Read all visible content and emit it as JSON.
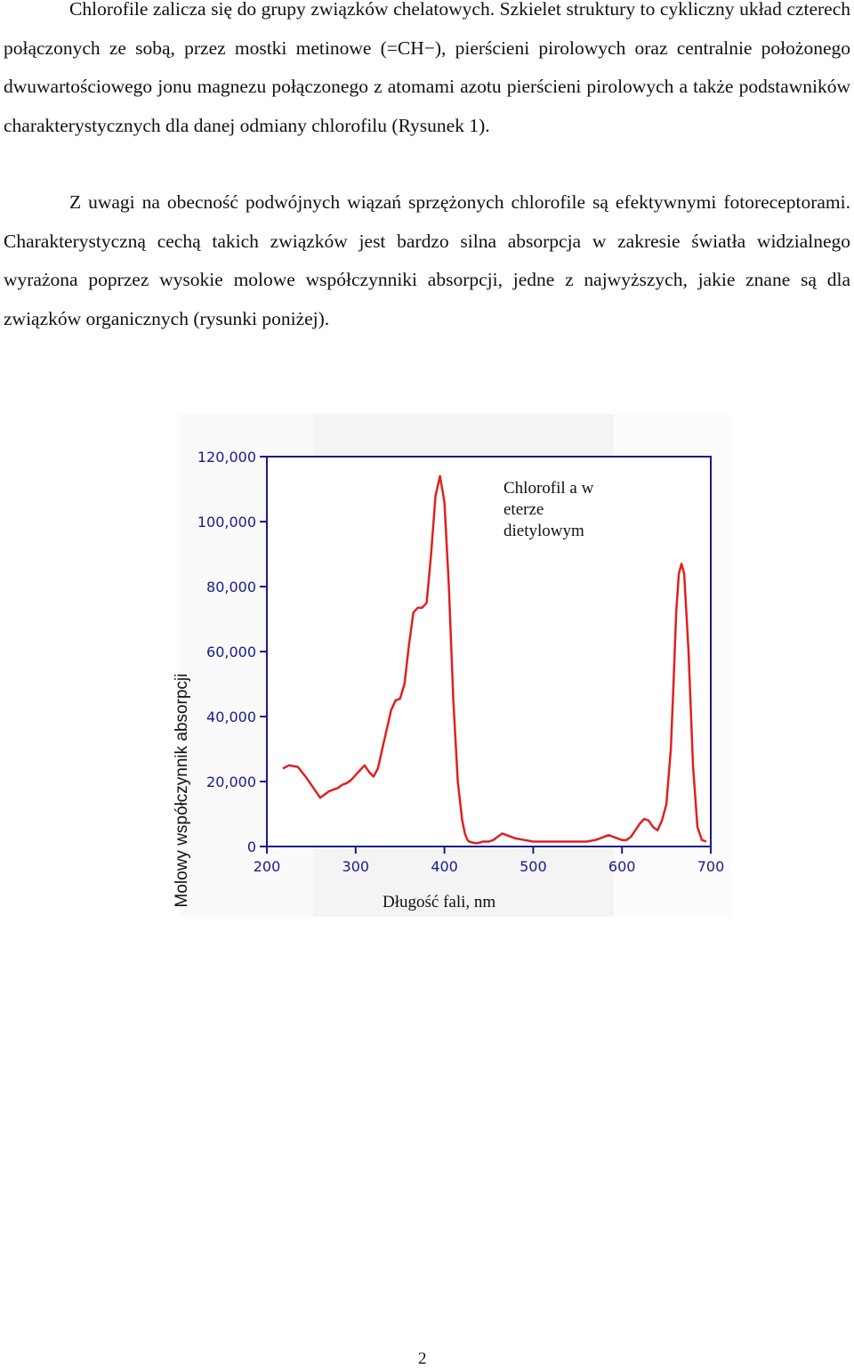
{
  "paragraphs": [
    "Chlorofile zalicza się do grupy związków chelatowych. Szkielet struktury to cykliczny układ czterech połączonych ze sobą, przez mostki metinowe (=CH−), pierścieni pirolowych oraz centralnie położonego dwuwartościowego jonu magnezu połączonego z atomami azotu pierścieni pirolowych a także podstawników charakterystycznych dla danej odmiany chlorofilu (Rysunek 1).",
    "Z uwagi na obecność podwójnych wiązań sprzężonych chlorofile są efektywnymi fotoreceptorami. Charakterystyczną cechą takich związków jest bardzo silna absorpcja w zakresie światła widzialnego wyrażona poprzez wysokie molowe współczynniki absorpcji, jedne z najwyższych, jakie znane są dla związków organicznych  (rysunki poniżej)."
  ],
  "figure": {
    "annotation": "Chlorofil a w eterze dietylowym",
    "ylabel": "Molowy  współczynnik absorpcji",
    "xlabel": "Długość fali, nm"
  },
  "chart_data": {
    "type": "line",
    "xlim": [
      200,
      700
    ],
    "ylim": [
      0,
      120000
    ],
    "xticks": [
      200,
      300,
      400,
      500,
      600,
      700
    ],
    "yticks": [
      0,
      20000,
      40000,
      60000,
      80000,
      100000,
      120000
    ],
    "xtick_labels": [
      "200",
      "300",
      "400",
      "500",
      "600",
      "700"
    ],
    "ytick_labels": [
      "0",
      "20,000",
      "40,000",
      "60,000",
      "80,000",
      "100,000",
      "120,000"
    ],
    "series": [
      {
        "color": "#e02020",
        "x": [
          218,
          225,
          235,
          245,
          255,
          260,
          265,
          270,
          275,
          280,
          285,
          290,
          295,
          300,
          305,
          310,
          315,
          320,
          325,
          330,
          335,
          340,
          345,
          350,
          355,
          360,
          365,
          370,
          375,
          380,
          385,
          390,
          395,
          400,
          405,
          410,
          415,
          420,
          423,
          426,
          428,
          432,
          436,
          440,
          443,
          446,
          450,
          455,
          460,
          465,
          470,
          480,
          490,
          500,
          510,
          520,
          530,
          535,
          540,
          545,
          550,
          560,
          570,
          575,
          580,
          585,
          590,
          595,
          600,
          605,
          610,
          615,
          620,
          625,
          630,
          635,
          640,
          645,
          650,
          655,
          658,
          661,
          664,
          667,
          670,
          675,
          680,
          685,
          690,
          695
        ],
        "y": [
          24000,
          25000,
          24500,
          21000,
          17000,
          15000,
          16000,
          17000,
          17500,
          18000,
          19000,
          19500,
          20500,
          22000,
          23500,
          25000,
          23000,
          21500,
          24000,
          30000,
          36000,
          42000,
          45000,
          45500,
          50000,
          62000,
          72000,
          73500,
          73500,
          75000,
          90000,
          108000,
          114000,
          106000,
          80000,
          45000,
          20000,
          8000,
          4000,
          2000,
          1500,
          1200,
          1000,
          1200,
          1500,
          1500,
          1500,
          2000,
          3000,
          4000,
          3500,
          2500,
          2000,
          1500,
          1500,
          1500,
          1500,
          1500,
          1500,
          1500,
          1500,
          1500,
          2000,
          2500,
          3000,
          3500,
          3000,
          2500,
          2000,
          2000,
          3000,
          5000,
          7000,
          8500,
          8000,
          6000,
          5000,
          8000,
          13000,
          30000,
          50000,
          72000,
          84000,
          87000,
          84000,
          60000,
          25000,
          6000,
          2000,
          1500
        ]
      }
    ]
  },
  "page_number": "2"
}
